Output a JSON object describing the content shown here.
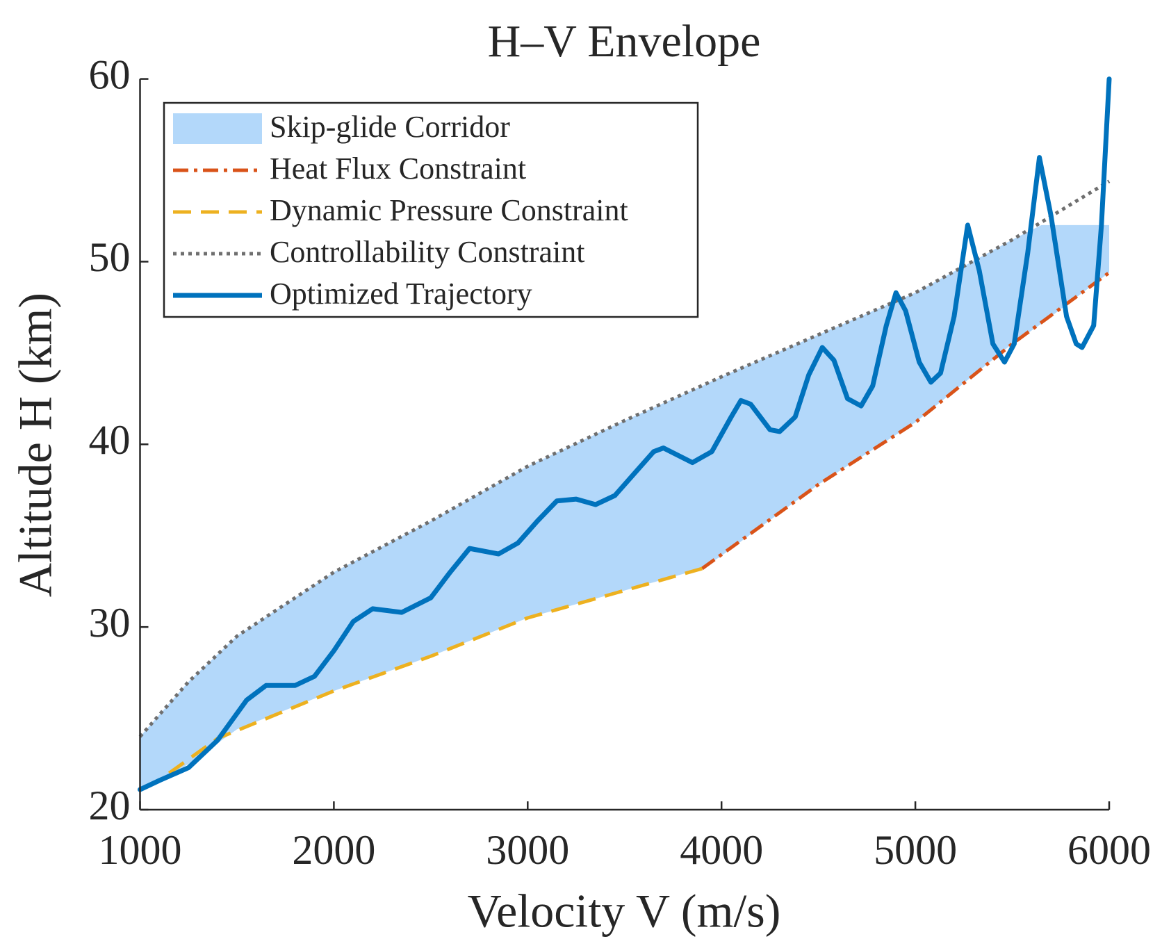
{
  "chart_data": {
    "type": "line",
    "title": "H–V Envelope",
    "x_label": "Velocity V (m/s)",
    "y_label": "Altitude H (km)",
    "xlim": [
      1000,
      6000
    ],
    "ylim": [
      20,
      60
    ],
    "xticks": [
      1000,
      2000,
      3000,
      4000,
      5000,
      6000
    ],
    "yticks": [
      20,
      30,
      40,
      50,
      60
    ],
    "legend": "northwest",
    "series": [
      {
        "name": "Skip-glide Corridor",
        "kind": "area",
        "color": "#b3d8fa",
        "x": [
          1000,
          1250,
          1500,
          2000,
          2500,
          3000,
          3500,
          3900,
          4000,
          4500,
          5000,
          5500,
          5650,
          6000
        ],
        "upper": [
          24,
          27,
          29.5,
          33,
          35.8,
          38.8,
          41.3,
          43.2,
          43.7,
          46,
          48.3,
          51.2,
          52,
          52
        ],
        "lower": [
          21,
          22.5,
          24.4,
          26.5,
          28.4,
          30.5,
          32,
          33.2,
          33.9,
          37.8,
          41.2,
          45.5,
          46.6,
          49.4
        ]
      },
      {
        "name": "Heat Flux Constraint",
        "kind": "line",
        "style": "dashdot",
        "color": "#d95319",
        "x": [
          3900,
          4500,
          5000,
          5500,
          6000
        ],
        "values": [
          33.2,
          37.8,
          41.2,
          45.5,
          49.4
        ]
      },
      {
        "name": "Dynamic Pressure Constraint",
        "kind": "line",
        "style": "dashed",
        "color": "#edb120",
        "x": [
          1150,
          1400,
          2000,
          2500,
          3000,
          3500,
          3900
        ],
        "values": [
          22,
          23.9,
          26.5,
          28.4,
          30.5,
          32,
          33.2
        ]
      },
      {
        "name": "Controllability Constraint",
        "kind": "line",
        "style": "dotted",
        "color": "#6f6f6f",
        "x": [
          1000,
          1250,
          1500,
          2000,
          2500,
          3000,
          3500,
          4000,
          4500,
          5000,
          5500,
          6000
        ],
        "values": [
          24,
          27,
          29.5,
          33,
          35.8,
          38.8,
          41.3,
          43.7,
          46,
          48.3,
          51.2,
          54.4
        ]
      },
      {
        "name": "Optimized Trajectory",
        "kind": "line",
        "style": "solid",
        "color": "#0072bd",
        "x": [
          1000,
          1100,
          1250,
          1400,
          1550,
          1650,
          1800,
          1900,
          2000,
          2100,
          2200,
          2350,
          2500,
          2600,
          2700,
          2850,
          2950,
          3050,
          3150,
          3250,
          3350,
          3450,
          3550,
          3650,
          3700,
          3850,
          3950,
          4050,
          4100,
          4150,
          4250,
          4300,
          4380,
          4450,
          4520,
          4580,
          4650,
          4720,
          4780,
          4850,
          4900,
          4950,
          5020,
          5080,
          5130,
          5200,
          5270,
          5330,
          5400,
          5460,
          5510,
          5580,
          5640,
          5700,
          5780,
          5830,
          5860,
          5920,
          5960,
          6000
        ],
        "values": [
          21.1,
          21.6,
          22.3,
          23.8,
          26.0,
          26.8,
          26.8,
          27.3,
          28.7,
          30.3,
          31.0,
          30.8,
          31.6,
          33.0,
          34.3,
          34.0,
          34.6,
          35.8,
          36.9,
          37.0,
          36.7,
          37.2,
          38.4,
          39.6,
          39.8,
          39.0,
          39.6,
          41.5,
          42.4,
          42.2,
          40.8,
          40.7,
          41.5,
          43.8,
          45.3,
          44.6,
          42.5,
          42.1,
          43.2,
          46.5,
          48.3,
          47.3,
          44.5,
          43.4,
          43.9,
          47.0,
          52.0,
          49.5,
          45.5,
          44.5,
          45.5,
          50.5,
          55.7,
          52.5,
          47,
          45.5,
          45.3,
          46.5,
          52,
          60
        ]
      }
    ]
  }
}
